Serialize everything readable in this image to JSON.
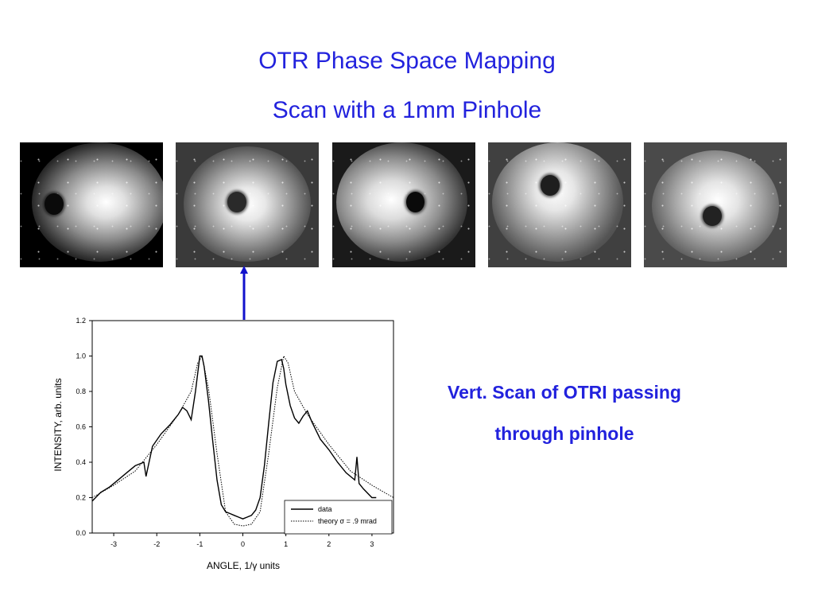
{
  "slide": {
    "title": "OTR Phase Space Mapping",
    "subtitle": "Scan with a 1mm Pinhole",
    "caption_line1": "Vert. Scan of OTRI passing",
    "caption_line2": "through pinhole",
    "title_color": "#2222dd"
  },
  "images": [
    {
      "name": "otr-image-1"
    },
    {
      "name": "otr-image-2"
    },
    {
      "name": "otr-image-3"
    },
    {
      "name": "otr-image-4"
    },
    {
      "name": "otr-image-5"
    }
  ],
  "chart_data": {
    "type": "line",
    "xlabel": "ANGLE, 1/γ units",
    "ylabel": "INTENSITY, arb. units",
    "xlim": [
      -3.5,
      3.5
    ],
    "ylim": [
      0,
      1.2
    ],
    "xticks": [
      -3,
      -2,
      -1,
      0,
      1,
      2,
      3
    ],
    "yticks": [
      0.0,
      0.2,
      0.4,
      0.6,
      0.8,
      1.0,
      1.2
    ],
    "ytick_labels": [
      "0.0",
      "0.2",
      "0.4",
      "0.6",
      "0.8",
      "1.0",
      "1.2"
    ],
    "grid": false,
    "legend_position": "bottom-right",
    "series": [
      {
        "name": "data",
        "style": "solid",
        "x": [
          -3.5,
          -3.3,
          -3.1,
          -2.9,
          -2.7,
          -2.5,
          -2.3,
          -2.25,
          -2.1,
          -1.9,
          -1.7,
          -1.5,
          -1.4,
          -1.3,
          -1.2,
          -1.1,
          -1.0,
          -0.95,
          -0.9,
          -0.8,
          -0.7,
          -0.6,
          -0.5,
          -0.4,
          -0.3,
          -0.2,
          -0.1,
          0.0,
          0.1,
          0.2,
          0.3,
          0.4,
          0.5,
          0.6,
          0.7,
          0.8,
          0.9,
          0.95,
          1.0,
          1.1,
          1.2,
          1.3,
          1.4,
          1.5,
          1.6,
          1.8,
          2.0,
          2.2,
          2.4,
          2.6,
          2.65,
          2.7,
          2.8,
          3.0,
          3.1
        ],
        "y": [
          0.18,
          0.23,
          0.26,
          0.3,
          0.34,
          0.38,
          0.4,
          0.32,
          0.49,
          0.56,
          0.61,
          0.67,
          0.71,
          0.69,
          0.64,
          0.8,
          1.0,
          1.0,
          0.94,
          0.75,
          0.52,
          0.3,
          0.16,
          0.12,
          0.11,
          0.1,
          0.09,
          0.08,
          0.09,
          0.1,
          0.13,
          0.2,
          0.38,
          0.62,
          0.85,
          0.97,
          0.98,
          0.93,
          0.84,
          0.72,
          0.65,
          0.62,
          0.66,
          0.69,
          0.63,
          0.53,
          0.47,
          0.4,
          0.34,
          0.3,
          0.43,
          0.28,
          0.25,
          0.2,
          0.2
        ]
      },
      {
        "name": "theory σ = .9 mrad",
        "style": "dotted",
        "x": [
          -3.5,
          -3.0,
          -2.5,
          -2.0,
          -1.5,
          -1.2,
          -1.05,
          -0.95,
          -0.8,
          -0.6,
          -0.4,
          -0.2,
          0.0,
          0.2,
          0.4,
          0.6,
          0.8,
          0.95,
          1.05,
          1.2,
          1.5,
          2.0,
          2.5,
          3.0,
          3.5
        ],
        "y": [
          0.2,
          0.27,
          0.35,
          0.5,
          0.67,
          0.8,
          0.96,
          1.0,
          0.82,
          0.45,
          0.12,
          0.05,
          0.04,
          0.05,
          0.12,
          0.45,
          0.82,
          1.0,
          0.96,
          0.8,
          0.67,
          0.5,
          0.35,
          0.27,
          0.2
        ]
      }
    ]
  }
}
